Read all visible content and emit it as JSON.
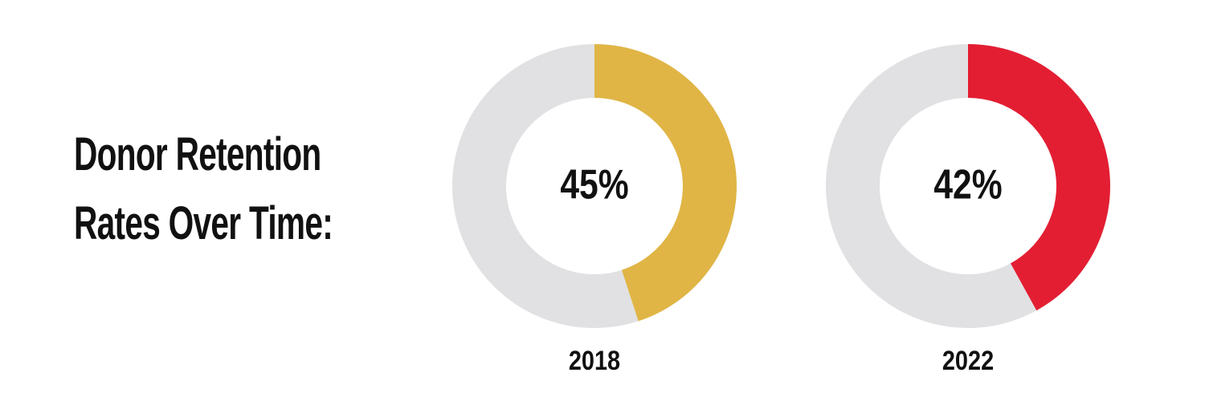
{
  "title": "Donor Retention Rates Over Time:",
  "chart_data": [
    {
      "type": "donut",
      "categories": [
        "2018"
      ],
      "values": [
        45
      ],
      "value_labels": [
        "45%"
      ],
      "color": "#e0b545",
      "track_color": "#e1e1e3",
      "range": [
        0,
        100
      ]
    },
    {
      "type": "donut",
      "categories": [
        "2022"
      ],
      "values": [
        42
      ],
      "value_labels": [
        "42%"
      ],
      "color": "#e31e33",
      "track_color": "#e1e1e3",
      "range": [
        0,
        100
      ]
    }
  ]
}
